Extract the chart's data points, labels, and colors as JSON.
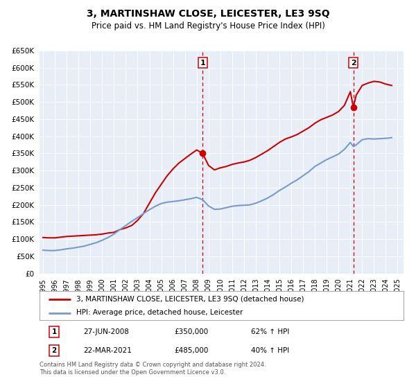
{
  "title": "3, MARTINSHAW CLOSE, LEICESTER, LE3 9SQ",
  "subtitle": "Price paid vs. HM Land Registry's House Price Index (HPI)",
  "title_fontsize": 10,
  "subtitle_fontsize": 8.5,
  "background_color": "#ffffff",
  "plot_bg_color": "#e8eef8",
  "grid_color": "#ffffff",
  "red_line_color": "#cc0000",
  "blue_line_color": "#7799cc",
  "marker_color": "#cc0000",
  "vline_color": "#cc0000",
  "legend_label_red": "3, MARTINSHAW CLOSE, LEICESTER, LE3 9SQ (detached house)",
  "legend_label_blue": "HPI: Average price, detached house, Leicester",
  "annotation1_label": "1",
  "annotation1_date": "27-JUN-2008",
  "annotation1_price": "£350,000",
  "annotation1_hpi": "62% ↑ HPI",
  "annotation1_year": 2008.5,
  "annotation1_value": 350000,
  "annotation2_label": "2",
  "annotation2_date": "22-MAR-2021",
  "annotation2_price": "£485,000",
  "annotation2_hpi": "40% ↑ HPI",
  "annotation2_year": 2021.25,
  "annotation2_value": 485000,
  "footer_line1": "Contains HM Land Registry data © Crown copyright and database right 2024.",
  "footer_line2": "This data is licensed under the Open Government Licence v3.0.",
  "ylim": [
    0,
    650000
  ],
  "yticks": [
    0,
    50000,
    100000,
    150000,
    200000,
    250000,
    300000,
    350000,
    400000,
    450000,
    500000,
    550000,
    600000,
    650000
  ],
  "xlim_start": 1994.7,
  "xlim_end": 2025.5,
  "red_years": [
    1995.0,
    1995.5,
    1996.0,
    1996.5,
    1997.0,
    1997.5,
    1998.0,
    1998.5,
    1999.0,
    1999.5,
    2000.0,
    2000.5,
    2001.0,
    2001.5,
    2002.0,
    2002.5,
    2003.0,
    2003.5,
    2004.0,
    2004.5,
    2005.0,
    2005.5,
    2006.0,
    2006.5,
    2007.0,
    2007.5,
    2008.0,
    2008.5,
    2009.0,
    2009.5,
    2010.0,
    2010.5,
    2011.0,
    2011.5,
    2012.0,
    2012.5,
    2013.0,
    2013.5,
    2014.0,
    2014.5,
    2015.0,
    2015.5,
    2016.0,
    2016.5,
    2017.0,
    2017.5,
    2018.0,
    2018.5,
    2019.0,
    2019.5,
    2020.0,
    2020.5,
    2021.0,
    2021.25,
    2021.5,
    2022.0,
    2022.5,
    2023.0,
    2023.5,
    2024.0,
    2024.5
  ],
  "red_values": [
    105000,
    104000,
    104000,
    106000,
    108000,
    109000,
    110000,
    111000,
    112000,
    113000,
    115000,
    118000,
    120000,
    128000,
    133000,
    140000,
    155000,
    175000,
    205000,
    235000,
    260000,
    285000,
    305000,
    322000,
    335000,
    348000,
    360000,
    350000,
    315000,
    302000,
    308000,
    312000,
    318000,
    322000,
    325000,
    330000,
    338000,
    348000,
    358000,
    370000,
    382000,
    392000,
    398000,
    405000,
    415000,
    425000,
    438000,
    448000,
    455000,
    462000,
    472000,
    490000,
    530000,
    485000,
    520000,
    548000,
    555000,
    560000,
    558000,
    552000,
    548000
  ],
  "blue_years": [
    1995.0,
    1995.5,
    1996.0,
    1996.5,
    1997.0,
    1997.5,
    1998.0,
    1998.5,
    1999.0,
    1999.5,
    2000.0,
    2000.5,
    2001.0,
    2001.5,
    2002.0,
    2002.5,
    2003.0,
    2003.5,
    2004.0,
    2004.5,
    2005.0,
    2005.5,
    2006.0,
    2006.5,
    2007.0,
    2007.5,
    2008.0,
    2008.5,
    2009.0,
    2009.5,
    2010.0,
    2010.5,
    2011.0,
    2011.5,
    2012.0,
    2012.5,
    2013.0,
    2013.5,
    2014.0,
    2014.5,
    2015.0,
    2015.5,
    2016.0,
    2016.5,
    2017.0,
    2017.5,
    2018.0,
    2018.5,
    2019.0,
    2019.5,
    2020.0,
    2020.5,
    2021.0,
    2021.25,
    2021.5,
    2022.0,
    2022.5,
    2023.0,
    2023.5,
    2024.0,
    2024.5
  ],
  "blue_values": [
    68000,
    67000,
    67000,
    69000,
    72000,
    74000,
    77000,
    80000,
    85000,
    90000,
    97000,
    105000,
    115000,
    128000,
    140000,
    152000,
    163000,
    175000,
    186000,
    196000,
    204000,
    208000,
    210000,
    212000,
    215000,
    218000,
    222000,
    215000,
    197000,
    187000,
    188000,
    192000,
    196000,
    198000,
    199000,
    200000,
    205000,
    212000,
    220000,
    230000,
    242000,
    252000,
    263000,
    273000,
    285000,
    297000,
    312000,
    322000,
    332000,
    340000,
    348000,
    362000,
    382000,
    370000,
    375000,
    390000,
    393000,
    392000,
    393000,
    394000,
    396000
  ]
}
